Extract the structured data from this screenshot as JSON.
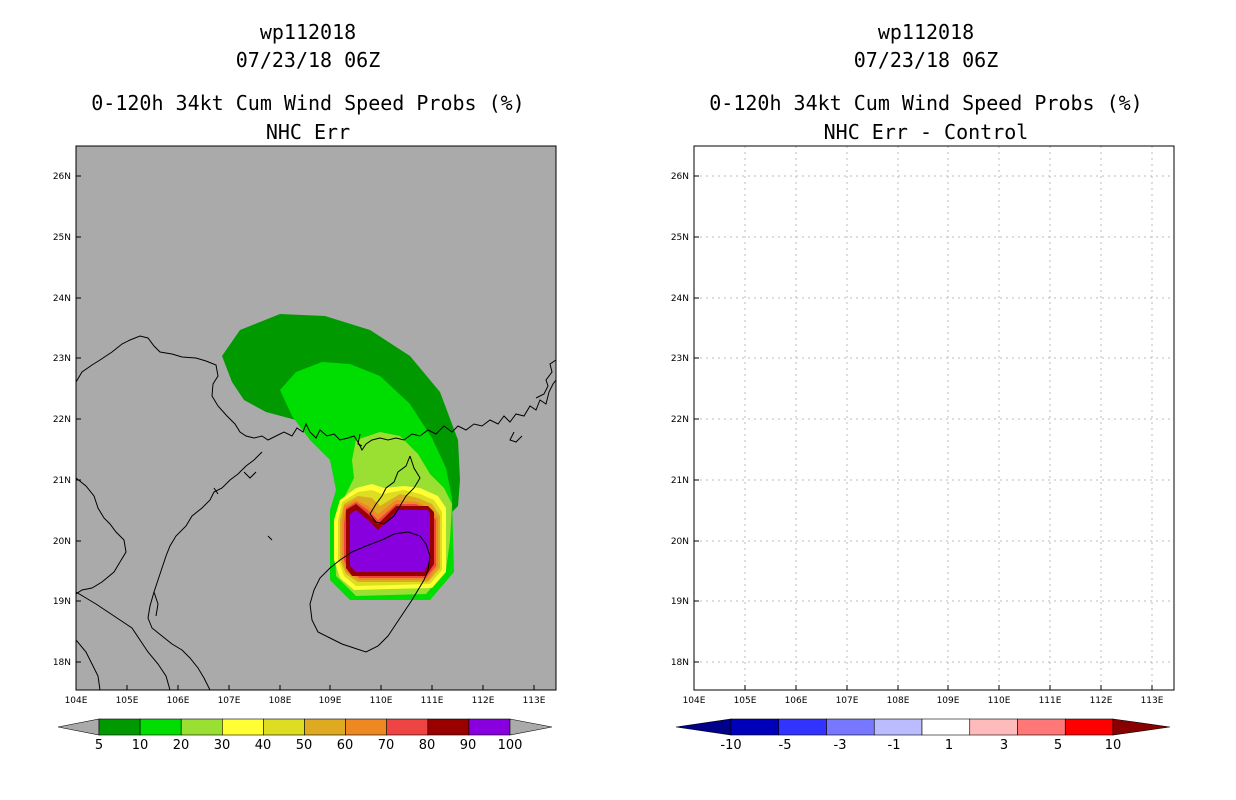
{
  "left_panel": {
    "storm_id": "wp112018",
    "datetime": "07/23/18 06Z",
    "product": "0-120h 34kt Cum Wind Speed Probs (%)",
    "subtitle": "NHC Err",
    "background_color": "#aaaaaa",
    "colorbar": {
      "colors": [
        "#009900",
        "#00dd00",
        "#99e033",
        "#ffff33",
        "#dddd22",
        "#ddaa22",
        "#ee8822",
        "#ee4444",
        "#990000",
        "#8800dd"
      ],
      "labels": [
        "5",
        "10",
        "20",
        "30",
        "40",
        "50",
        "60",
        "70",
        "80",
        "90",
        "100"
      ],
      "end_arrow_color": "#aaaaaa"
    }
  },
  "right_panel": {
    "storm_id": "wp112018",
    "datetime": "07/23/18 06Z",
    "product": "0-120h 34kt Cum Wind Speed Probs (%)",
    "subtitle": "NHC Err - Control",
    "background_color": "#ffffff",
    "colorbar": {
      "colors": [
        "#0000bb",
        "#3333ff",
        "#7777ff",
        "#bbbbff",
        "#ffffff",
        "#ffbbbb",
        "#ff7777",
        "#ff0000"
      ],
      "labels": [
        "-10",
        "-5",
        "-3",
        "-1",
        "1",
        "3",
        "5",
        "10"
      ],
      "left_arrow_color": "#000088",
      "right_arrow_color": "#880000"
    }
  },
  "map": {
    "lon_labels": [
      "104E",
      "105E",
      "106E",
      "107E",
      "108E",
      "109E",
      "110E",
      "111E",
      "112E",
      "113E"
    ],
    "lat_labels": [
      "18N",
      "19N",
      "20N",
      "21N",
      "22N",
      "23N",
      "24N",
      "25N",
      "26N"
    ]
  }
}
